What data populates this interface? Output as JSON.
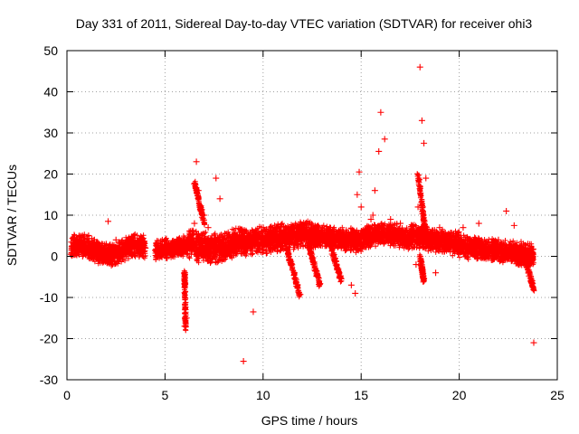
{
  "chart_data": {
    "type": "scatter",
    "title": "Day 331 of 2011, Sidereal Day-to-day VTEC variation (SDTVAR) for receiver ohi3",
    "xlabel": "GPS time / hours",
    "ylabel": "SDTVAR / TECUs",
    "xlim": [
      0,
      25
    ],
    "ylim": [
      -30,
      50
    ],
    "xticks": [
      0,
      5,
      10,
      15,
      20,
      25
    ],
    "yticks": [
      -30,
      -20,
      -10,
      0,
      10,
      20,
      30,
      40,
      50
    ],
    "grid": true,
    "marker": "+",
    "color": "#ff0000",
    "series": [
      {
        "name": "SDTVAR",
        "x": [
          0.2,
          0.5,
          0.8,
          1.1,
          1.4,
          1.7,
          2.0,
          2.1,
          2.3,
          2.5,
          2.7,
          3.0,
          3.3,
          3.6,
          3.9,
          4.0,
          4.5,
          5.0,
          5.5,
          5.8,
          6.0,
          6.0,
          6.1,
          6.2,
          6.3,
          6.5,
          6.6,
          6.7,
          6.8,
          7.0,
          7.2,
          7.4,
          7.6,
          7.8,
          7.8,
          8.0,
          8.5,
          9.0,
          9.2,
          9.5,
          9.7,
          10.0,
          10.5,
          11.0,
          11.5,
          11.8,
          12.0,
          12.5,
          12.8,
          13.0,
          13.5,
          14.0,
          14.5,
          14.7,
          14.8,
          14.9,
          15.0,
          15.3,
          15.5,
          15.6,
          15.7,
          15.9,
          16.0,
          16.2,
          16.5,
          17.0,
          17.5,
          17.8,
          17.9,
          18.0,
          18.1,
          18.2,
          18.3,
          18.5,
          18.8,
          19.0,
          19.5,
          20.0,
          20.2,
          20.5,
          21.0,
          21.5,
          22.0,
          22.4,
          22.8,
          23.0,
          23.3,
          23.5,
          23.7,
          23.8
        ],
        "y": [
          0.5,
          1.5,
          0,
          5,
          4,
          2,
          3,
          8.5,
          1,
          4,
          2,
          1,
          4.5,
          3,
          0,
          2,
          1.5,
          2,
          3,
          1,
          -5,
          -17,
          -15,
          2,
          4,
          8,
          23,
          16,
          12,
          10,
          7,
          4,
          19,
          14,
          5,
          3,
          4,
          -25.5,
          5,
          -13.5,
          4,
          6,
          5,
          4,
          6,
          5,
          7,
          4,
          6,
          5,
          3,
          4,
          -7,
          -9,
          15,
          20.5,
          12,
          5,
          9,
          10,
          16,
          25.5,
          35,
          28.5,
          9,
          8,
          6,
          -2,
          12,
          46,
          33,
          27.5,
          19,
          6,
          -4,
          7,
          5,
          3,
          7,
          4,
          8,
          2,
          4,
          11,
          7.5,
          2,
          0,
          3,
          -6,
          -21
        ]
      }
    ],
    "point_count_note": "dense point cloud summarised by representative sample points"
  }
}
